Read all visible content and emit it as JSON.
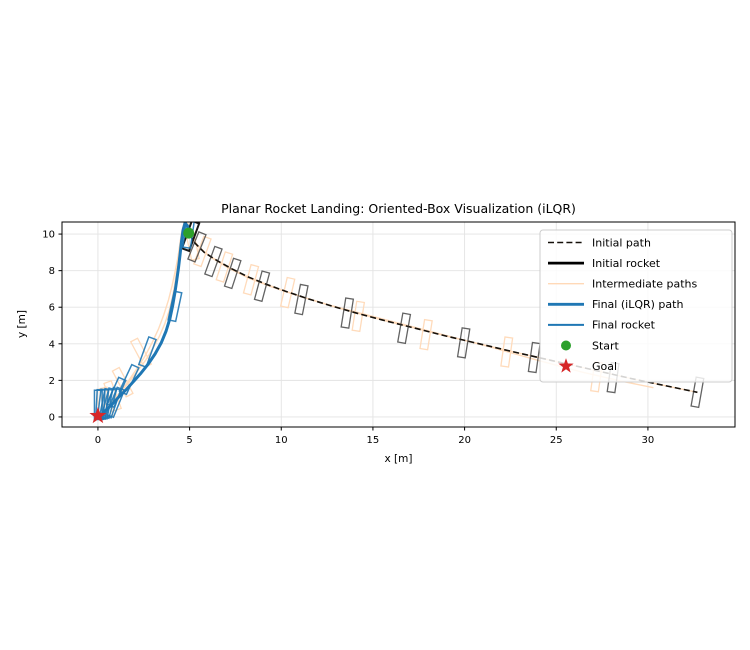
{
  "chart_data": {
    "type": "line",
    "title": "Planar Rocket Landing: Oriented-Box Visualization (iLQR)",
    "xlabel": "x [m]",
    "ylabel": "y [m]",
    "xlim": [
      -1.96,
      34.75
    ],
    "ylim": [
      -0.55,
      10.66
    ],
    "xticks": [
      0,
      5,
      10,
      15,
      20,
      25,
      30
    ],
    "yticks": [
      0,
      2,
      4,
      6,
      8,
      10
    ],
    "grid": true,
    "colors": {
      "initial_path": "#15100a",
      "initial_rocket": "#2f2f2f",
      "intermediate": "#ffd9b7",
      "final_path": "#1f77b4",
      "final_rocket": "#1f77b4",
      "start": "#2ca02c",
      "goal": "#d62728",
      "grid": "#e3e3e3",
      "spine": "#000000",
      "legend_border": "#cccccc"
    },
    "series": [
      {
        "name": "Initial path",
        "style": "dashed",
        "points": [
          [
            5.0,
            10.0
          ],
          [
            5.3,
            9.5
          ],
          [
            5.8,
            9.0
          ],
          [
            6.5,
            8.55
          ],
          [
            7.3,
            8.1
          ],
          [
            8.2,
            7.65
          ],
          [
            9.2,
            7.25
          ],
          [
            10.3,
            6.85
          ],
          [
            11.5,
            6.45
          ],
          [
            12.8,
            6.05
          ],
          [
            14.2,
            5.65
          ],
          [
            15.7,
            5.25
          ],
          [
            17.3,
            4.85
          ],
          [
            19.0,
            4.42
          ],
          [
            20.8,
            4.0
          ],
          [
            22.7,
            3.55
          ],
          [
            24.7,
            3.1
          ],
          [
            26.8,
            2.62
          ],
          [
            29.0,
            2.12
          ],
          [
            31.0,
            1.7
          ],
          [
            32.7,
            1.35
          ]
        ]
      },
      {
        "name": "Final (iLQR) path",
        "style": "solid",
        "points": [
          [
            5.0,
            10.0
          ],
          [
            4.88,
            10.45
          ],
          [
            4.75,
            10.6
          ],
          [
            4.64,
            10.2
          ],
          [
            4.56,
            9.6
          ],
          [
            4.48,
            8.9
          ],
          [
            4.4,
            8.2
          ],
          [
            4.3,
            7.5
          ],
          [
            4.2,
            6.8
          ],
          [
            4.08,
            6.1
          ],
          [
            3.93,
            5.4
          ],
          [
            3.72,
            4.7
          ],
          [
            3.45,
            4.05
          ],
          [
            3.12,
            3.45
          ],
          [
            2.75,
            2.9
          ],
          [
            2.35,
            2.4
          ],
          [
            1.95,
            1.95
          ],
          [
            1.55,
            1.5
          ],
          [
            1.15,
            1.1
          ],
          [
            0.8,
            0.72
          ],
          [
            0.45,
            0.38
          ],
          [
            0.15,
            0.1
          ],
          [
            0.0,
            0.02
          ]
        ]
      }
    ],
    "intermediate_paths": [
      [
        [
          5.0,
          10.0
        ],
        [
          5.3,
          9.5
        ],
        [
          5.8,
          9.0
        ],
        [
          6.5,
          8.55
        ],
        [
          7.3,
          8.1
        ],
        [
          8.2,
          7.65
        ],
        [
          9.2,
          7.25
        ],
        [
          10.3,
          6.85
        ],
        [
          11.5,
          6.45
        ],
        [
          12.8,
          6.05
        ],
        [
          14.2,
          5.65
        ],
        [
          15.7,
          5.25
        ],
        [
          17.3,
          4.85
        ],
        [
          19.0,
          4.42
        ],
        [
          20.8,
          4.0
        ],
        [
          22.7,
          3.55
        ],
        [
          24.7,
          3.1
        ],
        [
          26.8,
          2.62
        ],
        [
          29.0,
          2.12
        ],
        [
          31.0,
          1.7
        ],
        [
          32.7,
          1.35
        ]
      ],
      [
        [
          5.0,
          10.0
        ],
        [
          5.5,
          9.3
        ],
        [
          6.2,
          8.7
        ],
        [
          7.1,
          8.15
        ],
        [
          8.2,
          7.6
        ],
        [
          9.5,
          7.1
        ],
        [
          11.0,
          6.6
        ],
        [
          12.7,
          6.1
        ],
        [
          14.6,
          5.6
        ],
        [
          16.7,
          5.05
        ],
        [
          19.0,
          4.45
        ],
        [
          21.5,
          3.8
        ],
        [
          24.0,
          3.1
        ],
        [
          26.4,
          2.45
        ],
        [
          28.6,
          1.95
        ],
        [
          30.3,
          1.6
        ]
      ],
      [
        [
          5.0,
          10.0
        ],
        [
          4.8,
          10.55
        ],
        [
          4.62,
          10.35
        ],
        [
          4.5,
          9.6
        ],
        [
          4.38,
          8.8
        ],
        [
          4.22,
          8.0
        ],
        [
          4.05,
          7.2
        ],
        [
          3.85,
          6.4
        ],
        [
          3.6,
          5.6
        ],
        [
          3.3,
          4.8
        ],
        [
          2.95,
          4.05
        ],
        [
          2.55,
          3.3
        ],
        [
          2.1,
          2.6
        ],
        [
          1.65,
          1.95
        ],
        [
          1.2,
          1.35
        ],
        [
          0.78,
          0.82
        ],
        [
          0.4,
          0.38
        ],
        [
          0.1,
          0.08
        ],
        [
          0.0,
          0.0
        ]
      ],
      [
        [
          5.0,
          10.0
        ],
        [
          4.9,
          10.6
        ],
        [
          4.7,
          10.65
        ],
        [
          4.55,
          10.0
        ],
        [
          4.45,
          9.3
        ],
        [
          4.35,
          8.6
        ],
        [
          4.28,
          7.9
        ],
        [
          4.18,
          7.2
        ],
        [
          4.05,
          6.5
        ],
        [
          3.88,
          5.8
        ],
        [
          3.65,
          5.1
        ],
        [
          3.35,
          4.4
        ],
        [
          3.0,
          3.75
        ],
        [
          2.6,
          3.1
        ],
        [
          2.15,
          2.5
        ],
        [
          1.7,
          1.9
        ],
        [
          1.28,
          1.4
        ],
        [
          0.88,
          0.92
        ],
        [
          0.5,
          0.5
        ],
        [
          0.18,
          0.15
        ],
        [
          0.0,
          0.0
        ]
      ]
    ],
    "rocket_box_size": [
      0.42,
      1.6
    ],
    "rockets": {
      "initial": [
        [
          5.05,
          9.9,
          20
        ],
        [
          5.4,
          9.3,
          22
        ],
        [
          6.3,
          8.5,
          20
        ],
        [
          7.35,
          7.85,
          18
        ],
        [
          8.95,
          7.15,
          15
        ],
        [
          11.1,
          6.42,
          11
        ],
        [
          13.6,
          5.68,
          9
        ],
        [
          16.7,
          4.85,
          10
        ],
        [
          19.95,
          4.05,
          9
        ],
        [
          23.8,
          3.25,
          8
        ],
        [
          28.1,
          2.15,
          8
        ],
        [
          32.7,
          1.35,
          10
        ]
      ],
      "intermediate": [
        [
          5.7,
          9.05,
          20
        ],
        [
          6.9,
          8.2,
          18
        ],
        [
          8.35,
          7.5,
          15
        ],
        [
          10.35,
          6.8,
          13
        ],
        [
          14.2,
          5.5,
          9
        ],
        [
          17.9,
          4.5,
          9
        ],
        [
          22.3,
          3.55,
          8
        ],
        [
          27.2,
          2.2,
          8
        ],
        [
          5.15,
          9.4,
          -12
        ],
        [
          2.35,
          3.5,
          -28
        ],
        [
          1.35,
          1.9,
          -28
        ],
        [
          0.8,
          1.15,
          -20
        ],
        [
          0.45,
          0.8,
          -12
        ],
        [
          0.22,
          0.7,
          -5
        ]
      ],
      "final": [
        [
          4.95,
          10.05,
          8
        ],
        [
          4.2,
          6.05,
          12
        ],
        [
          2.7,
          3.55,
          20
        ],
        [
          1.7,
          2.05,
          25
        ],
        [
          1.0,
          1.35,
          24
        ],
        [
          0.95,
          0.8,
          22
        ],
        [
          0.78,
          0.78,
          19
        ],
        [
          0.6,
          0.75,
          15
        ],
        [
          0.44,
          0.72,
          11
        ],
        [
          0.28,
          0.7,
          7
        ],
        [
          0.13,
          0.68,
          3
        ],
        [
          0.02,
          0.66,
          0
        ]
      ]
    },
    "markers": {
      "start": {
        "label": "Start",
        "x": 4.95,
        "y": 10.05
      },
      "goal": {
        "label": "Goal",
        "x": 0.0,
        "y": 0.06
      }
    },
    "legend": {
      "position": "upper right",
      "entries": [
        {
          "label": "Initial path",
          "kind": "dashed-line",
          "color": "#15100a"
        },
        {
          "label": "Initial rocket",
          "kind": "thick-line",
          "color": "#000000"
        },
        {
          "label": "Intermediate paths",
          "kind": "thin-line",
          "color": "#ffd9b7"
        },
        {
          "label": "Final (iLQR) path",
          "kind": "thick-line",
          "color": "#1f77b4"
        },
        {
          "label": "Final rocket",
          "kind": "line",
          "color": "#1f77b4"
        },
        {
          "label": "Start",
          "kind": "circle",
          "color": "#2ca02c"
        },
        {
          "label": "Goal",
          "kind": "star",
          "color": "#d62728"
        }
      ]
    }
  }
}
